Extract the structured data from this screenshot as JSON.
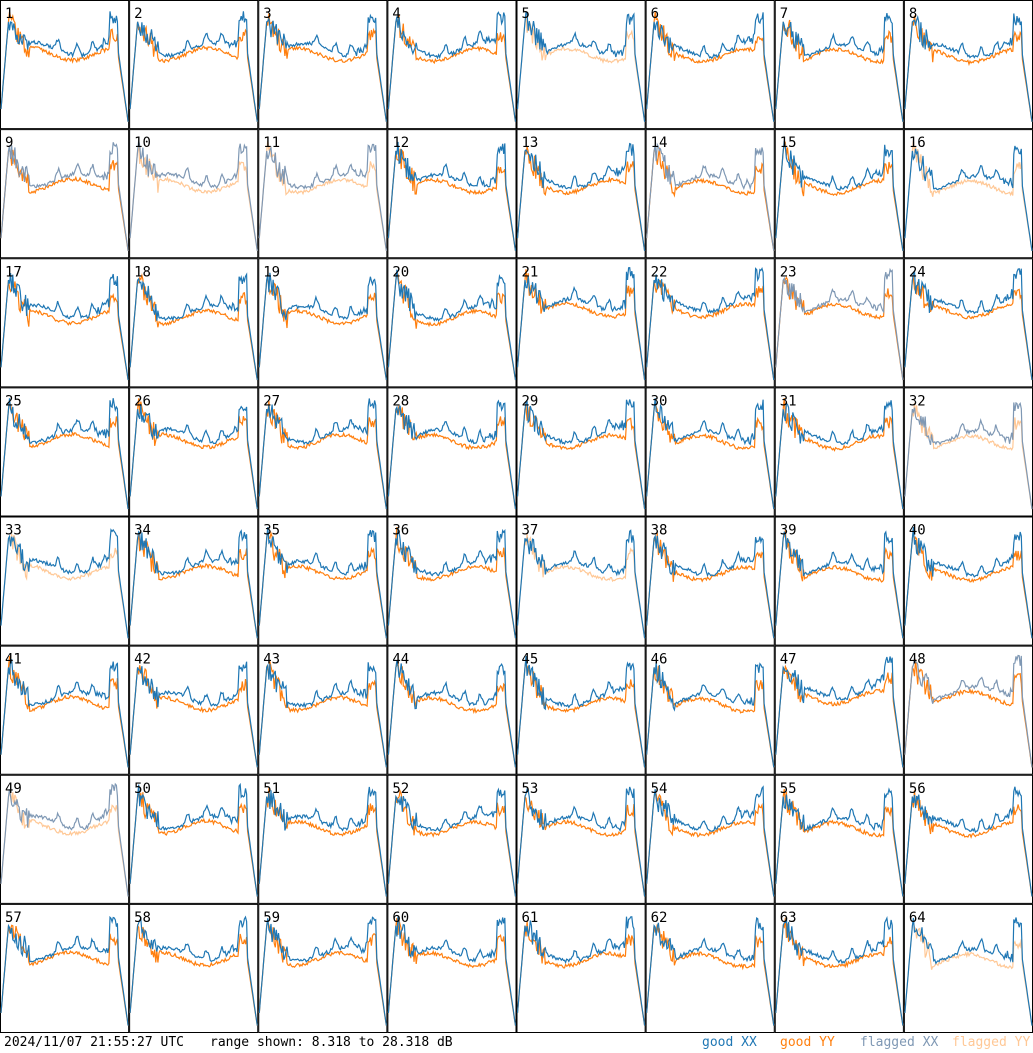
{
  "footer": {
    "timestamp": "2024/11/07 21:55:27 UTC",
    "range": "range shown: 8.318 to 28.318 dB"
  },
  "legend": [
    {
      "label": "good XX",
      "color": "#1f77b4"
    },
    {
      "label": "good YY",
      "color": "#ff7f0e"
    },
    {
      "label": "flagged XX",
      "color": "#7f98b4"
    },
    {
      "label": "flagged YY",
      "color": "#ffc896"
    }
  ],
  "chart_data": {
    "type": "line",
    "ylim": [
      8.318,
      28.318
    ],
    "grid": false,
    "rows": 8,
    "cols": 8,
    "panels": [
      {
        "label": "1",
        "xx": "good",
        "yy": "good"
      },
      {
        "label": "2",
        "xx": "good",
        "yy": "good"
      },
      {
        "label": "3",
        "xx": "good",
        "yy": "good"
      },
      {
        "label": "4",
        "xx": "good",
        "yy": "good"
      },
      {
        "label": "5",
        "xx": "good",
        "yy": "flagged"
      },
      {
        "label": "6",
        "xx": "good",
        "yy": "good"
      },
      {
        "label": "7",
        "xx": "good",
        "yy": "good"
      },
      {
        "label": "8",
        "xx": "good",
        "yy": "good"
      },
      {
        "label": "9",
        "xx": "flagged",
        "yy": "good"
      },
      {
        "label": "10",
        "xx": "flagged",
        "yy": "flagged"
      },
      {
        "label": "11",
        "xx": "flagged",
        "yy": "flagged"
      },
      {
        "label": "12",
        "xx": "good",
        "yy": "good"
      },
      {
        "label": "13",
        "xx": "good",
        "yy": "good"
      },
      {
        "label": "14",
        "xx": "flagged",
        "yy": "good"
      },
      {
        "label": "15",
        "xx": "good",
        "yy": "good"
      },
      {
        "label": "16",
        "xx": "good",
        "yy": "flagged"
      },
      {
        "label": "17",
        "xx": "good",
        "yy": "good"
      },
      {
        "label": "18",
        "xx": "good",
        "yy": "good"
      },
      {
        "label": "19",
        "xx": "good",
        "yy": "good"
      },
      {
        "label": "20",
        "xx": "good",
        "yy": "good"
      },
      {
        "label": "21",
        "xx": "good",
        "yy": "good"
      },
      {
        "label": "22",
        "xx": "good",
        "yy": "good"
      },
      {
        "label": "23",
        "xx": "flagged",
        "yy": "good"
      },
      {
        "label": "24",
        "xx": "good",
        "yy": "good"
      },
      {
        "label": "25",
        "xx": "good",
        "yy": "good"
      },
      {
        "label": "26",
        "xx": "good",
        "yy": "good"
      },
      {
        "label": "27",
        "xx": "good",
        "yy": "good"
      },
      {
        "label": "28",
        "xx": "good",
        "yy": "good"
      },
      {
        "label": "29",
        "xx": "good",
        "yy": "good"
      },
      {
        "label": "30",
        "xx": "good",
        "yy": "good"
      },
      {
        "label": "31",
        "xx": "good",
        "yy": "good"
      },
      {
        "label": "32",
        "xx": "flagged",
        "yy": "flagged"
      },
      {
        "label": "33",
        "xx": "good",
        "yy": "flagged"
      },
      {
        "label": "34",
        "xx": "good",
        "yy": "good"
      },
      {
        "label": "35",
        "xx": "good",
        "yy": "good"
      },
      {
        "label": "36",
        "xx": "good",
        "yy": "good"
      },
      {
        "label": "37",
        "xx": "good",
        "yy": "flagged"
      },
      {
        "label": "38",
        "xx": "good",
        "yy": "good"
      },
      {
        "label": "39",
        "xx": "good",
        "yy": "good"
      },
      {
        "label": "40",
        "xx": "good",
        "yy": "good"
      },
      {
        "label": "41",
        "xx": "good",
        "yy": "good"
      },
      {
        "label": "42",
        "xx": "good",
        "yy": "good"
      },
      {
        "label": "43",
        "xx": "good",
        "yy": "good"
      },
      {
        "label": "44",
        "xx": "good",
        "yy": "good"
      },
      {
        "label": "45",
        "xx": "good",
        "yy": "good"
      },
      {
        "label": "46",
        "xx": "good",
        "yy": "good"
      },
      {
        "label": "47",
        "xx": "good",
        "yy": "good"
      },
      {
        "label": "48",
        "xx": "flagged",
        "yy": "good"
      },
      {
        "label": "49",
        "xx": "flagged",
        "yy": "flagged"
      },
      {
        "label": "50",
        "xx": "good",
        "yy": "good"
      },
      {
        "label": "51",
        "xx": "good",
        "yy": "good"
      },
      {
        "label": "52",
        "xx": "good",
        "yy": "good"
      },
      {
        "label": "53",
        "xx": "good",
        "yy": "good"
      },
      {
        "label": "54",
        "xx": "good",
        "yy": "good"
      },
      {
        "label": "55",
        "xx": "good",
        "yy": "good"
      },
      {
        "label": "56",
        "xx": "good",
        "yy": "good"
      },
      {
        "label": "57",
        "xx": "good",
        "yy": "good"
      },
      {
        "label": "58",
        "xx": "good",
        "yy": "good"
      },
      {
        "label": "59",
        "xx": "good",
        "yy": "good"
      },
      {
        "label": "60",
        "xx": "good",
        "yy": "good"
      },
      {
        "label": "61",
        "xx": "good",
        "yy": "good"
      },
      {
        "label": "62",
        "xx": "good",
        "yy": "good"
      },
      {
        "label": "63",
        "xx": "good",
        "yy": "good"
      },
      {
        "label": "64",
        "xx": "good",
        "yy": "flagged"
      }
    ]
  }
}
